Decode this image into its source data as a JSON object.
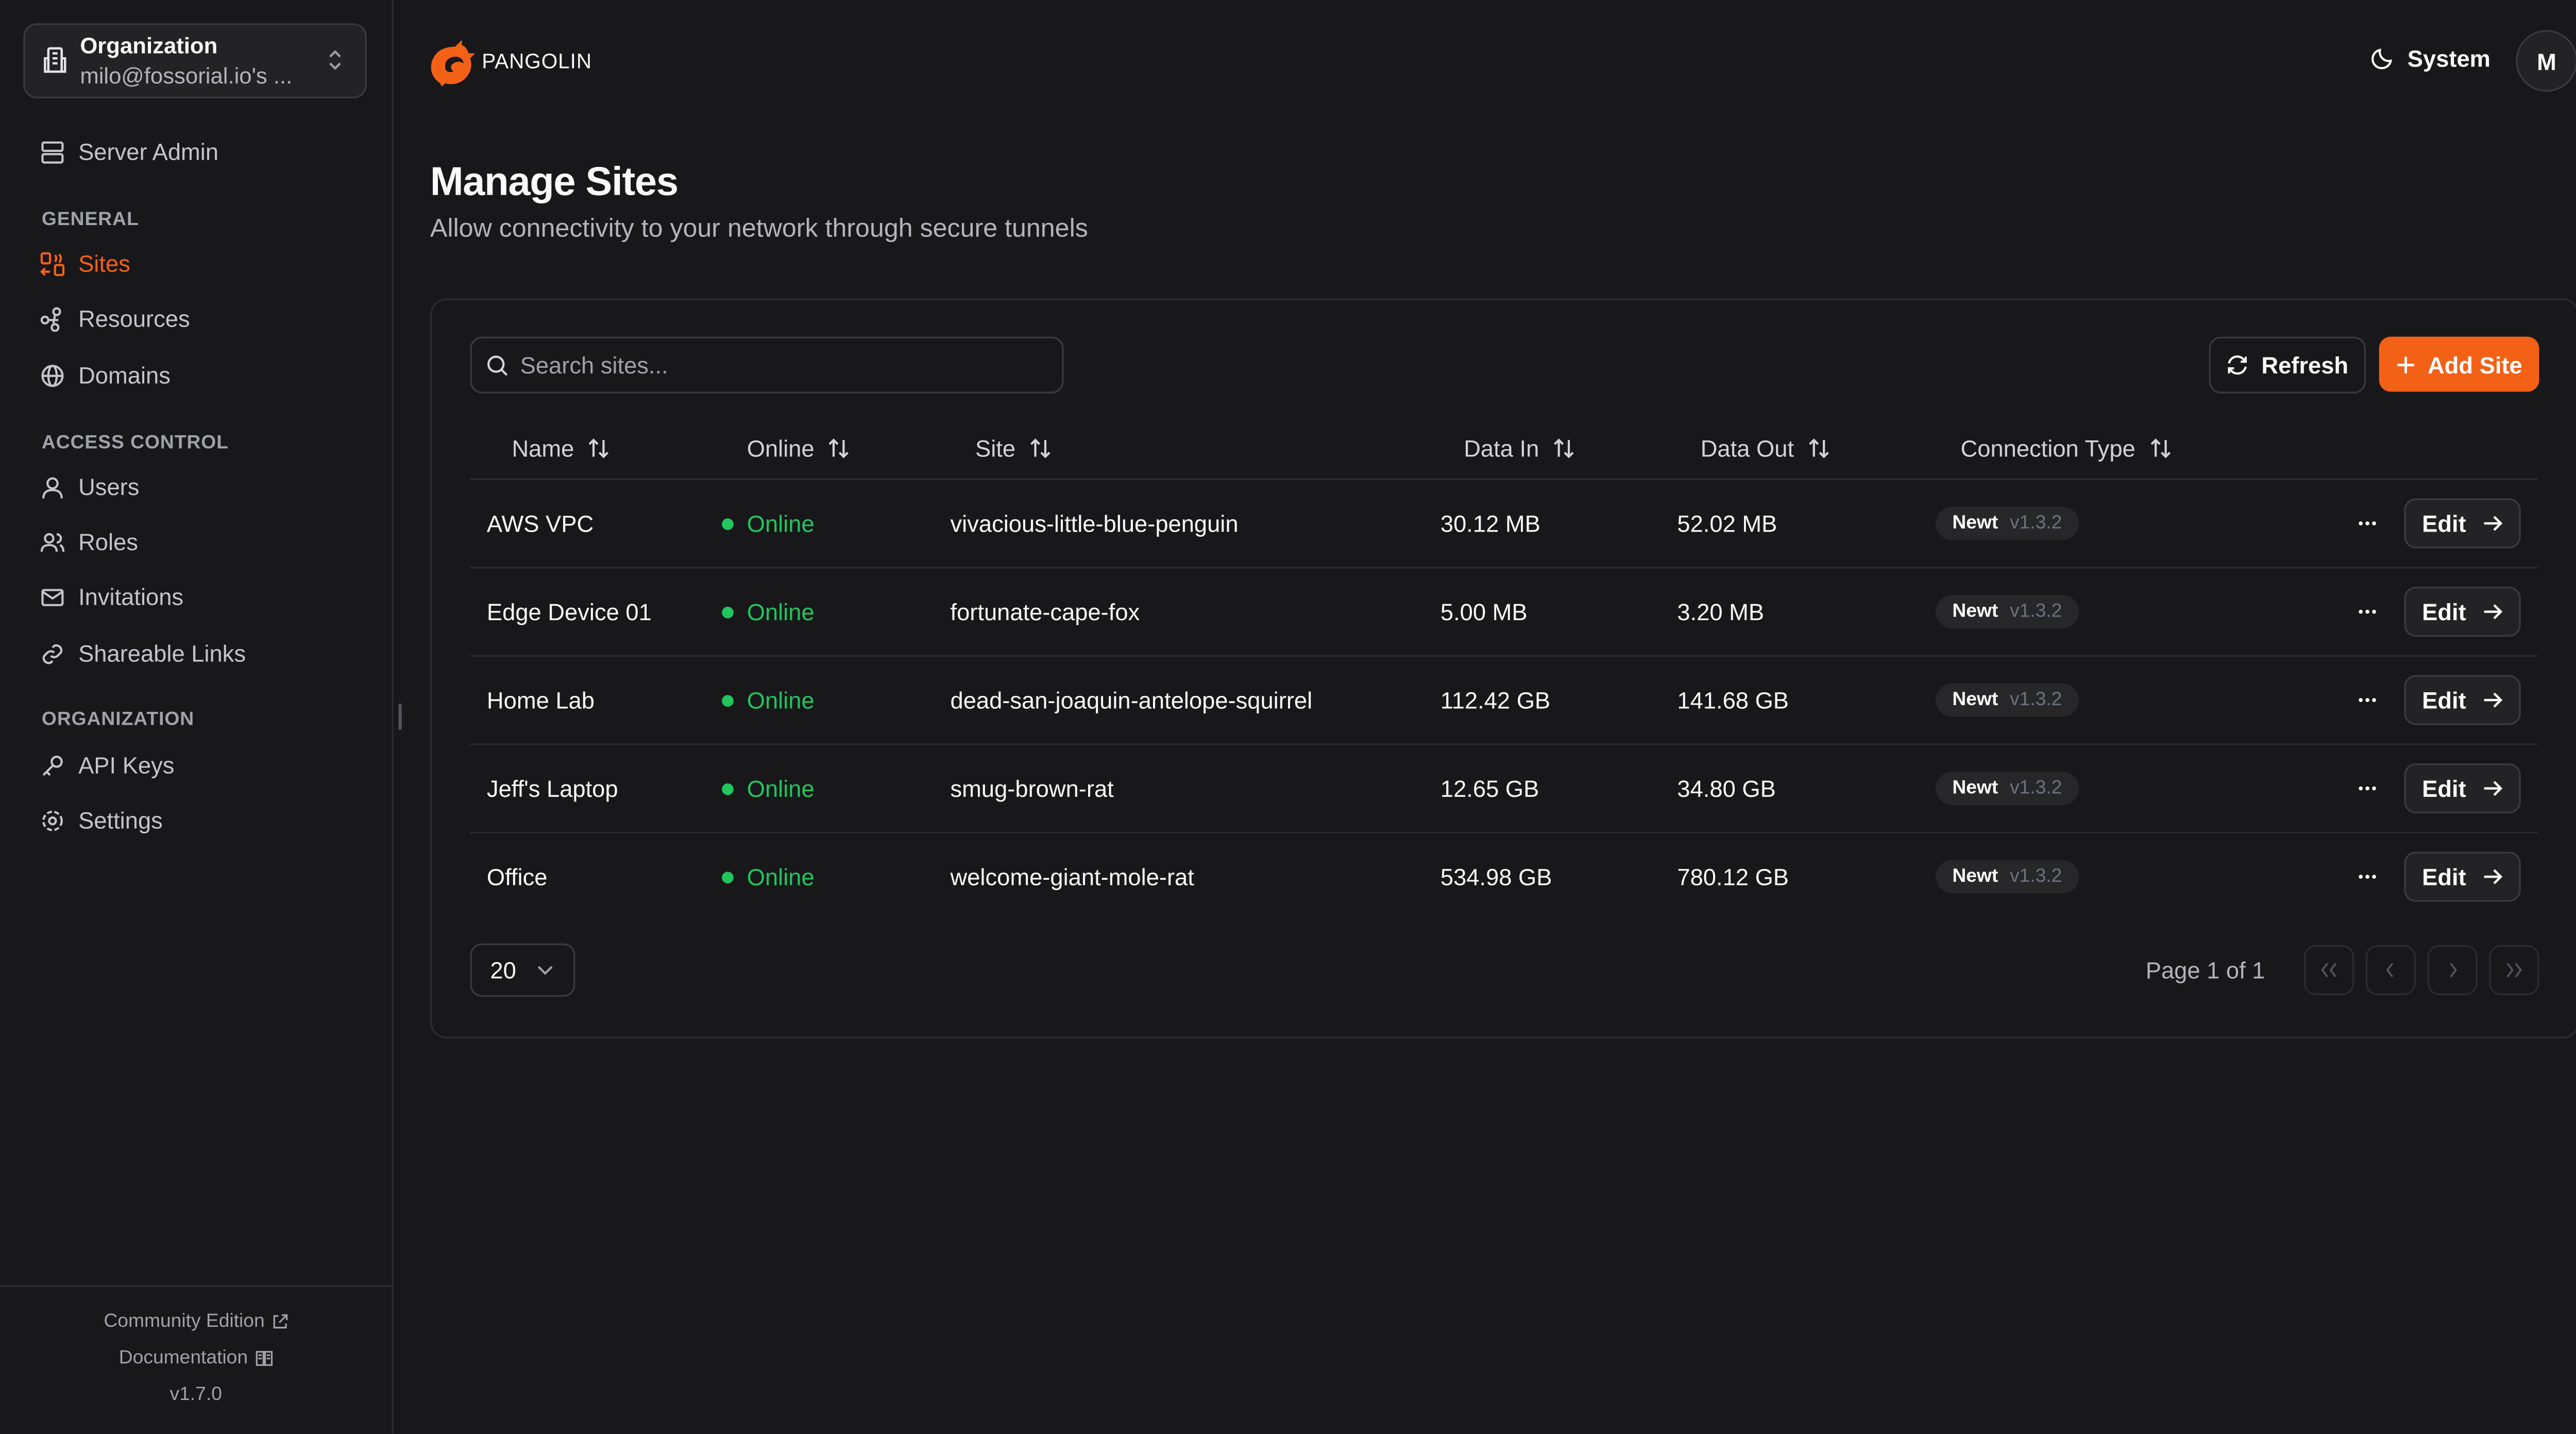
{
  "sidebar": {
    "org_label": "Organization",
    "org_name": "milo@fossorial.io's ...",
    "server_admin": "Server Admin",
    "sections": {
      "general": "GENERAL",
      "access_control": "ACCESS CONTROL",
      "organization": "ORGANIZATION"
    },
    "items": {
      "sites": "Sites",
      "resources": "Resources",
      "domains": "Domains",
      "users": "Users",
      "roles": "Roles",
      "invitations": "Invitations",
      "shareable_links": "Shareable Links",
      "api_keys": "API Keys",
      "settings": "Settings"
    },
    "footer": {
      "community": "Community Edition",
      "docs": "Documentation",
      "version": "v1.7.0"
    }
  },
  "header": {
    "brand": "PANGOLIN",
    "theme": "System",
    "avatar": "M"
  },
  "page": {
    "title": "Manage Sites",
    "subtitle": "Allow connectivity to your network through secure tunnels"
  },
  "toolbar": {
    "search_placeholder": "Search sites...",
    "refresh": "Refresh",
    "add_site": "Add Site"
  },
  "colors": {
    "accent": "#f36117",
    "online": "#22c55e",
    "background": "#18181b"
  },
  "table": {
    "columns": [
      "Name",
      "Online",
      "Site",
      "Data In",
      "Data Out",
      "Connection Type"
    ],
    "rows": [
      {
        "name": "AWS VPC",
        "online": "Online",
        "site": "vivacious-little-blue-penguin",
        "data_in": "30.12 MB",
        "data_out": "52.02 MB",
        "type": "Newt",
        "version": "v1.3.2",
        "edit": "Edit"
      },
      {
        "name": "Edge Device 01",
        "online": "Online",
        "site": "fortunate-cape-fox",
        "data_in": "5.00 MB",
        "data_out": "3.20 MB",
        "type": "Newt",
        "version": "v1.3.2",
        "edit": "Edit"
      },
      {
        "name": "Home Lab",
        "online": "Online",
        "site": "dead-san-joaquin-antelope-squirrel",
        "data_in": "112.42 GB",
        "data_out": "141.68 GB",
        "type": "Newt",
        "version": "v1.3.2",
        "edit": "Edit"
      },
      {
        "name": "Jeff's Laptop",
        "online": "Online",
        "site": "smug-brown-rat",
        "data_in": "12.65 GB",
        "data_out": "34.80 GB",
        "type": "Newt",
        "version": "v1.3.2",
        "edit": "Edit"
      },
      {
        "name": "Office",
        "online": "Online",
        "site": "welcome-giant-mole-rat",
        "data_in": "534.98 GB",
        "data_out": "780.12 GB",
        "type": "Newt",
        "version": "v1.3.2",
        "edit": "Edit"
      }
    ]
  },
  "pagination": {
    "page_size": "20",
    "page_info": "Page 1 of 1"
  }
}
